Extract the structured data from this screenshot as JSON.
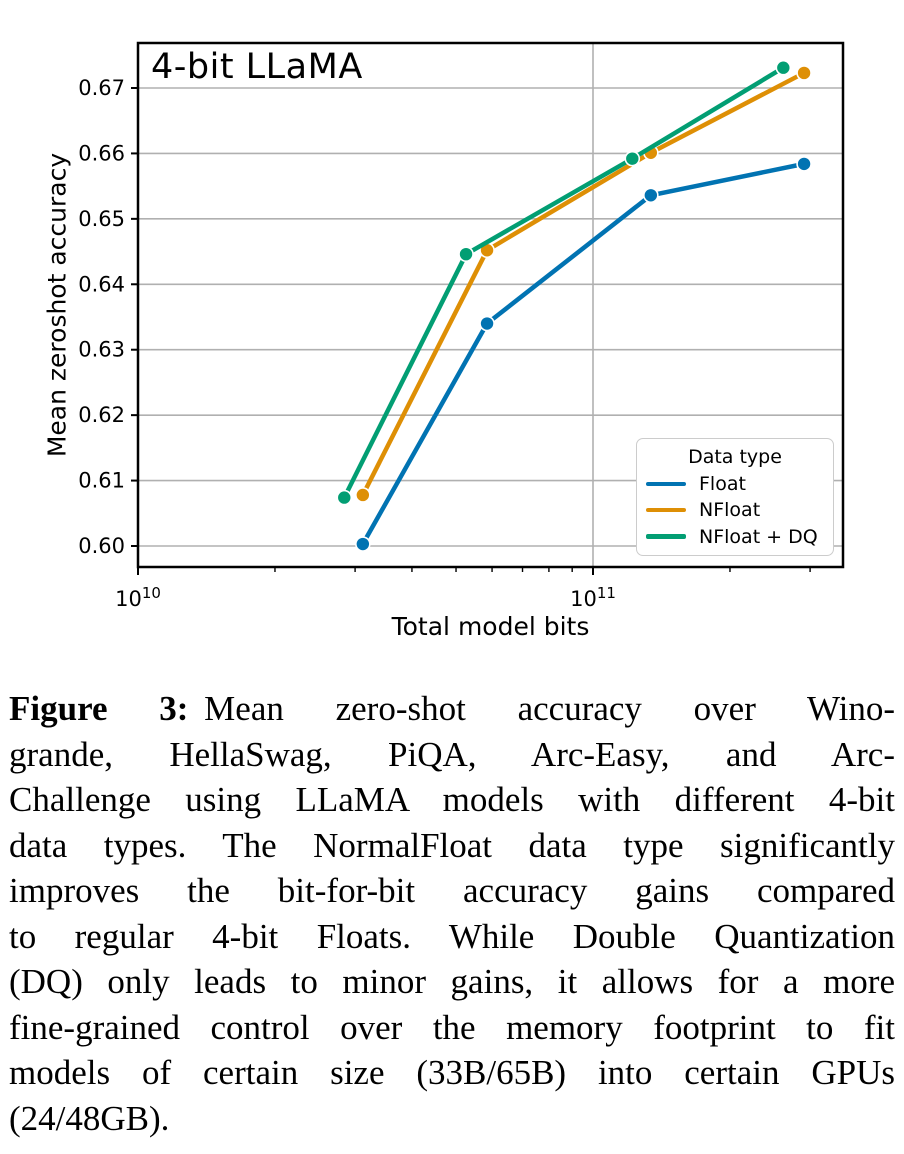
{
  "chart_data": {
    "type": "line",
    "title": "4-bit LLaMA",
    "xlabel": "Total model bits",
    "ylabel": "Mean zeroshot accuracy",
    "x_scale": "log",
    "xlim": [
      10000000000.0,
      355000000000.0
    ],
    "ylim": [
      0.5968,
      0.677
    ],
    "grid": "major",
    "colors": {
      "grid": "#b0b0b0",
      "spine": "#000000",
      "background": "#ffffff"
    },
    "legend": {
      "title": "Data type",
      "position": "lower right"
    },
    "y_ticks": {
      "values": [
        0.6,
        0.61,
        0.62,
        0.63,
        0.64,
        0.65,
        0.66,
        0.67
      ],
      "labels": [
        "0.60",
        "0.61",
        "0.62",
        "0.63",
        "0.64",
        "0.65",
        "0.66",
        "0.67"
      ]
    },
    "x_major_ticks": {
      "values": [
        10000000000.0,
        100000000000.0
      ],
      "labels": [
        {
          "base": "10",
          "exp": "10"
        },
        {
          "base": "10",
          "exp": "11"
        }
      ]
    },
    "x_minor_ticks": [
      20000000000.0,
      30000000000.0,
      40000000000.0,
      50000000000.0,
      60000000000.0,
      70000000000.0,
      80000000000.0,
      90000000000.0,
      200000000000.0,
      300000000000.0
    ],
    "series": [
      {
        "name": "Float",
        "color": "#0173b2",
        "x": [
          31200000000.0,
          58500000000.0,
          134000000000.0,
          291000000000.0
        ],
        "y": [
          0.6003,
          0.634,
          0.6536,
          0.6584
        ]
      },
      {
        "name": "NFloat",
        "color": "#de8f05",
        "x": [
          31200000000.0,
          58500000000.0,
          134000000000.0,
          291000000000.0
        ],
        "y": [
          0.6078,
          0.6452,
          0.6601,
          0.6723
        ]
      },
      {
        "name": "NFloat + DQ",
        "color": "#029e73",
        "x": [
          28400000000.0,
          52600000000.0,
          122000000000.0,
          262000000000.0
        ],
        "y": [
          0.6074,
          0.6446,
          0.6592,
          0.6731
        ]
      }
    ]
  },
  "caption": {
    "bold_prefix": "Figure 3:",
    "lines": [
      "Mean zero-shot accuracy over Wino-",
      "grande, HellaSwag, PiQA, Arc-Easy, and Arc-",
      "Challenge using LLaMA models with different 4-bit",
      "data types. The NormalFloat data type significantly",
      "improves the bit-for-bit accuracy gains compared",
      "to regular 4-bit Floats. While Double Quantization",
      "(DQ) only leads to minor gains, it allows for a more",
      "fine-grained control over the memory footprint to fit",
      "models of certain size (33B/65B) into certain GPUs",
      "(24/48GB)."
    ]
  }
}
